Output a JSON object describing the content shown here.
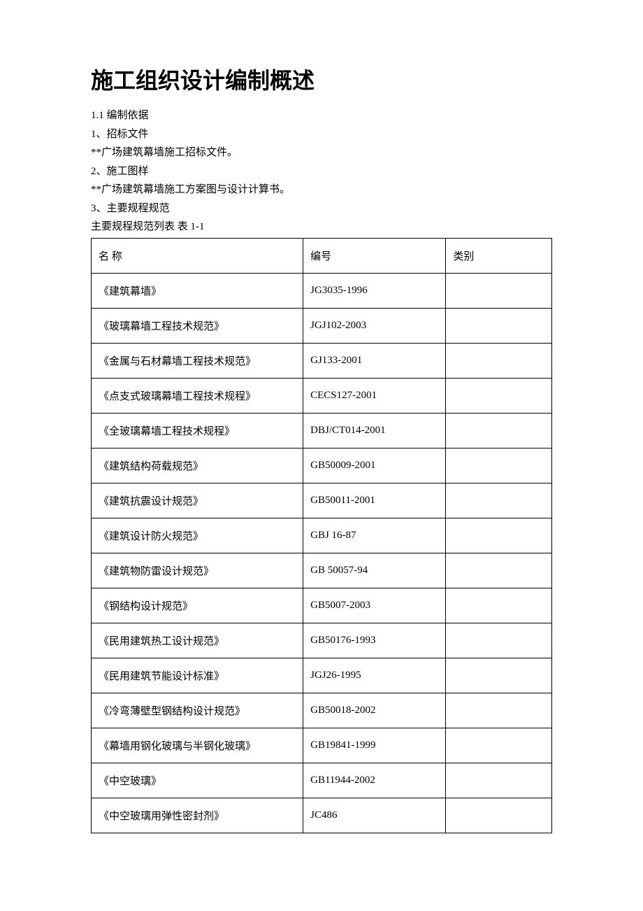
{
  "title": "施工组织设计编制概述",
  "intro": {
    "l1": "1.1 编制依据",
    "l2": "1、招标文件",
    "l3": "**广场建筑幕墙施工招标文件。",
    "l4": "2、施工图样",
    "l5": "**广场建筑幕墙施工方案图与设计计算书。",
    "l6": "3、主要规程规范",
    "l7": "主要规程规范列表 表 1-1"
  },
  "table": {
    "headers": {
      "name": "名 称",
      "code": "编号",
      "category": "类别"
    },
    "rows": [
      {
        "name": "《建筑幕墙》",
        "code": "JG3035-1996",
        "category": ""
      },
      {
        "name": "《玻璃幕墙工程技术规范》",
        "code": "JGJ102-2003",
        "category": ""
      },
      {
        "name": "《金属与石材幕墙工程技术规范》",
        "code": "GJ133-2001",
        "category": ""
      },
      {
        "name": "《点支式玻璃幕墙工程技术规程》",
        "code": "CECS127-2001",
        "category": ""
      },
      {
        "name": "《全玻璃幕墙工程技术规程》",
        "code": "DBJ/CT014-2001",
        "category": ""
      },
      {
        "name": "《建筑结构荷载规范》",
        "code": "GB50009-2001",
        "category": ""
      },
      {
        "name": "《建筑抗震设计规范》",
        "code": "GB50011-2001",
        "category": ""
      },
      {
        "name": "《建筑设计防火规范》",
        "code": "GBJ 16-87",
        "category": ""
      },
      {
        "name": "《建筑物防雷设计规范》",
        "code": "GB 50057-94",
        "category": ""
      },
      {
        "name": "《钢结构设计规范》",
        "code": "GB5007-2003",
        "category": ""
      },
      {
        "name": "《民用建筑热工设计规范》",
        "code": "GB50176-1993",
        "category": ""
      },
      {
        "name": "《民用建筑节能设计标准》",
        "code": "JGJ26-1995",
        "category": ""
      },
      {
        "name": "《冷弯薄壁型钢结构设计规范》",
        "code": "GB50018-2002",
        "category": ""
      },
      {
        "name": "《幕墙用钢化玻璃与半钢化玻璃》",
        "code": "GB19841-1999",
        "category": ""
      },
      {
        "name": "《中空玻璃》",
        "code": "GB11944-2002",
        "category": ""
      },
      {
        "name": "《中空玻璃用弹性密封剂》",
        "code": "JC486",
        "category": ""
      }
    ]
  }
}
